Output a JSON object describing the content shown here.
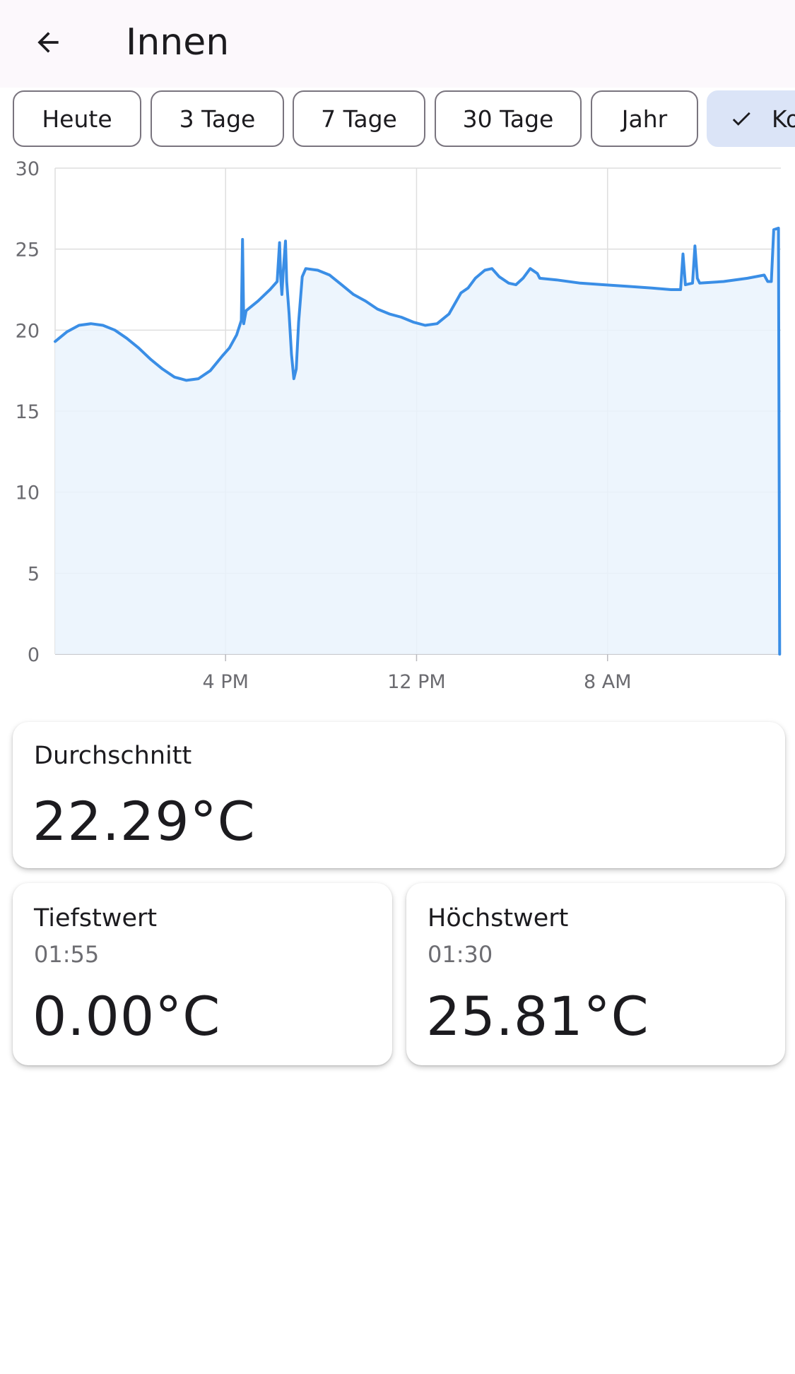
{
  "header": {
    "title": "Innen",
    "back_icon": "arrow-left-icon"
  },
  "filters": [
    {
      "label": "Heute",
      "selected": false
    },
    {
      "label": "3 Tage",
      "selected": false
    },
    {
      "label": "7 Tage",
      "selected": false
    },
    {
      "label": "30 Tage",
      "selected": false
    },
    {
      "label": "Jahr",
      "selected": false
    },
    {
      "label": "Ko",
      "selected": true,
      "icon": "check-icon"
    }
  ],
  "colors": {
    "line": "#3a8ee6",
    "fill": "#eaf3fd",
    "grid": "#dedede",
    "selected_chip": "#dbe4f7"
  },
  "chart_data": {
    "type": "area",
    "title": "",
    "xlabel": "",
    "ylabel": "",
    "ylim": [
      0,
      30
    ],
    "y_ticks": [
      "0",
      "5",
      "10",
      "15",
      "20",
      "25",
      "30"
    ],
    "x_tick_labels": [
      "4 PM",
      "12 PM",
      "8 AM"
    ],
    "x_tick_hours": [
      7.14,
      15.14,
      23.14
    ],
    "xlim_hours": [
      0,
      30.4
    ],
    "grid": true,
    "series": [
      {
        "points": [
          [
            0.0,
            19.3
          ],
          [
            0.5,
            19.9
          ],
          [
            1.0,
            20.3
          ],
          [
            1.5,
            20.4
          ],
          [
            2.0,
            20.3
          ],
          [
            2.5,
            20.0
          ],
          [
            3.0,
            19.5
          ],
          [
            3.5,
            18.9
          ],
          [
            4.0,
            18.2
          ],
          [
            4.5,
            17.6
          ],
          [
            5.0,
            17.1
          ],
          [
            5.5,
            16.9
          ],
          [
            6.0,
            17.0
          ],
          [
            6.5,
            17.5
          ],
          [
            7.0,
            18.4
          ],
          [
            7.3,
            18.9
          ],
          [
            7.6,
            19.7
          ],
          [
            7.8,
            20.6
          ],
          [
            7.85,
            25.6
          ],
          [
            7.9,
            20.4
          ],
          [
            8.0,
            21.2
          ],
          [
            8.5,
            21.8
          ],
          [
            9.0,
            22.5
          ],
          [
            9.3,
            23.0
          ],
          [
            9.4,
            25.4
          ],
          [
            9.45,
            23.3
          ],
          [
            9.5,
            22.2
          ],
          [
            9.55,
            23.5
          ],
          [
            9.65,
            25.5
          ],
          [
            9.7,
            23.0
          ],
          [
            9.8,
            21.0
          ],
          [
            9.9,
            18.5
          ],
          [
            10.0,
            17.0
          ],
          [
            10.1,
            17.6
          ],
          [
            10.2,
            20.5
          ],
          [
            10.35,
            23.3
          ],
          [
            10.5,
            23.8
          ],
          [
            11.0,
            23.7
          ],
          [
            11.5,
            23.4
          ],
          [
            12.0,
            22.8
          ],
          [
            12.5,
            22.2
          ],
          [
            13.0,
            21.8
          ],
          [
            13.5,
            21.3
          ],
          [
            14.0,
            21.0
          ],
          [
            14.5,
            20.8
          ],
          [
            15.0,
            20.5
          ],
          [
            15.5,
            20.3
          ],
          [
            16.0,
            20.4
          ],
          [
            16.5,
            21.0
          ],
          [
            17.0,
            22.3
          ],
          [
            17.3,
            22.6
          ],
          [
            17.6,
            23.2
          ],
          [
            18.0,
            23.7
          ],
          [
            18.3,
            23.8
          ],
          [
            18.6,
            23.3
          ],
          [
            19.0,
            22.9
          ],
          [
            19.3,
            22.8
          ],
          [
            19.6,
            23.2
          ],
          [
            19.9,
            23.8
          ],
          [
            20.2,
            23.5
          ],
          [
            20.3,
            23.2
          ],
          [
            21.0,
            23.1
          ],
          [
            22.0,
            22.9
          ],
          [
            23.0,
            22.8
          ],
          [
            24.0,
            22.7
          ],
          [
            25.0,
            22.6
          ],
          [
            25.8,
            22.5
          ],
          [
            26.2,
            22.5
          ],
          [
            26.3,
            24.7
          ],
          [
            26.4,
            22.8
          ],
          [
            26.7,
            22.9
          ],
          [
            26.8,
            25.2
          ],
          [
            26.9,
            23.2
          ],
          [
            27.0,
            22.9
          ],
          [
            28.0,
            23.0
          ],
          [
            29.0,
            23.2
          ],
          [
            29.7,
            23.4
          ],
          [
            29.85,
            23.0
          ],
          [
            30.0,
            23.0
          ],
          [
            30.1,
            26.2
          ],
          [
            30.3,
            26.3
          ],
          [
            30.35,
            0.0
          ]
        ]
      }
    ]
  },
  "stats": {
    "average": {
      "label": "Durchschnitt",
      "value": "22.29°C"
    },
    "min": {
      "label": "Tiefstwert",
      "time": "01:55",
      "value": "0.00°C"
    },
    "max": {
      "label": "Höchstwert",
      "time": "01:30",
      "value": "25.81°C"
    }
  }
}
